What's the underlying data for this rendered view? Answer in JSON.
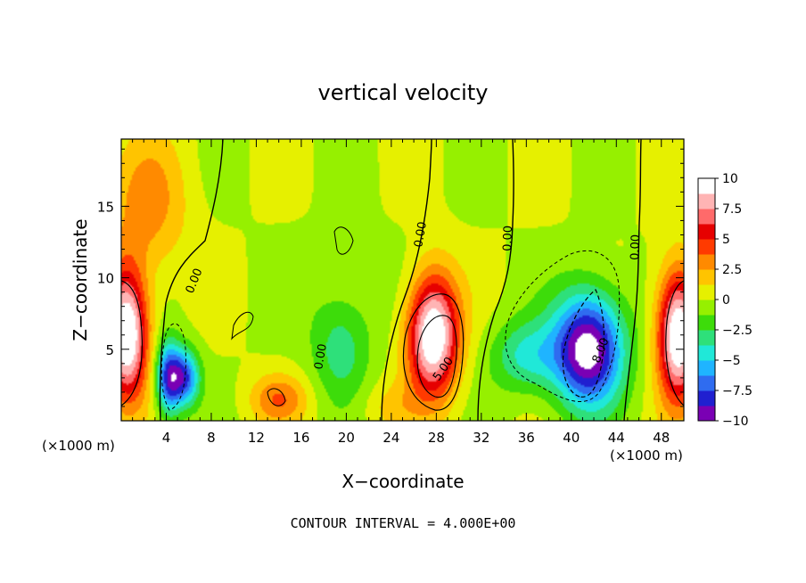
{
  "chart_data": {
    "type": "heatmap",
    "title": "vertical velocity",
    "xlabel": "X−coordinate",
    "ylabel": "Z−coordinate",
    "x_unit_left": "(×1000 m)",
    "x_unit_right": "(×1000 m)",
    "xlim": [
      0,
      50
    ],
    "ylim": [
      0,
      19.7
    ],
    "x_ticks": [
      4,
      8,
      12,
      16,
      20,
      24,
      28,
      32,
      36,
      40,
      44,
      48
    ],
    "x_tick_labels": [
      "4",
      "8",
      "12",
      "16",
      "20",
      "24",
      "28",
      "32",
      "36",
      "40",
      "44",
      "48"
    ],
    "y_ticks": [
      5,
      10,
      15
    ],
    "y_tick_labels": [
      "5",
      "10",
      "15"
    ],
    "colorbar": {
      "range": [
        -10,
        10
      ],
      "tick_values": [
        10,
        7.5,
        5,
        2.5,
        0,
        -2.5,
        -5,
        -7.5,
        -10
      ],
      "tick_labels": [
        "10",
        "7.5",
        "5",
        "2.5",
        "0",
        "−2.5",
        "−5",
        "−7.5",
        "−10"
      ],
      "colors": [
        "#7a00b4",
        "#2020d0",
        "#2f6cf0",
        "#1fb4ff",
        "#20e8d8",
        "#2ee07a",
        "#3ddc0a",
        "#96f000",
        "#e6f000",
        "#ffc400",
        "#ff8a00",
        "#ff3a00",
        "#e60000",
        "#ff6a6a",
        "#ffb4b4",
        "#ffffff"
      ]
    },
    "contour_labels": [
      "0.00",
      "0.00",
      "0.00",
      "0.00",
      "0.00",
      "5.00",
      "8.00"
    ],
    "footer": "CONTOUR INTERVAL = 4.000E+00",
    "features": [
      {
        "x": 0.5,
        "z": 6,
        "value": 11
      },
      {
        "x": 27.7,
        "z": 6,
        "value": 11
      },
      {
        "x": 49.5,
        "z": 6,
        "value": 11
      },
      {
        "x": 41.5,
        "z": 5,
        "value": -11
      },
      {
        "x": 4.2,
        "z": 3,
        "value": -8
      },
      {
        "x": 5.7,
        "z": 3,
        "value": -7
      },
      {
        "x": 2.3,
        "z": 15,
        "value": 3
      },
      {
        "x": 36,
        "z": 4.5,
        "value": -4
      },
      {
        "x": 19.5,
        "z": 5,
        "value": -3
      },
      {
        "x": 14,
        "z": 1.5,
        "value": 3.5
      },
      {
        "x": 24,
        "z": 1,
        "value": 1.5
      }
    ]
  }
}
